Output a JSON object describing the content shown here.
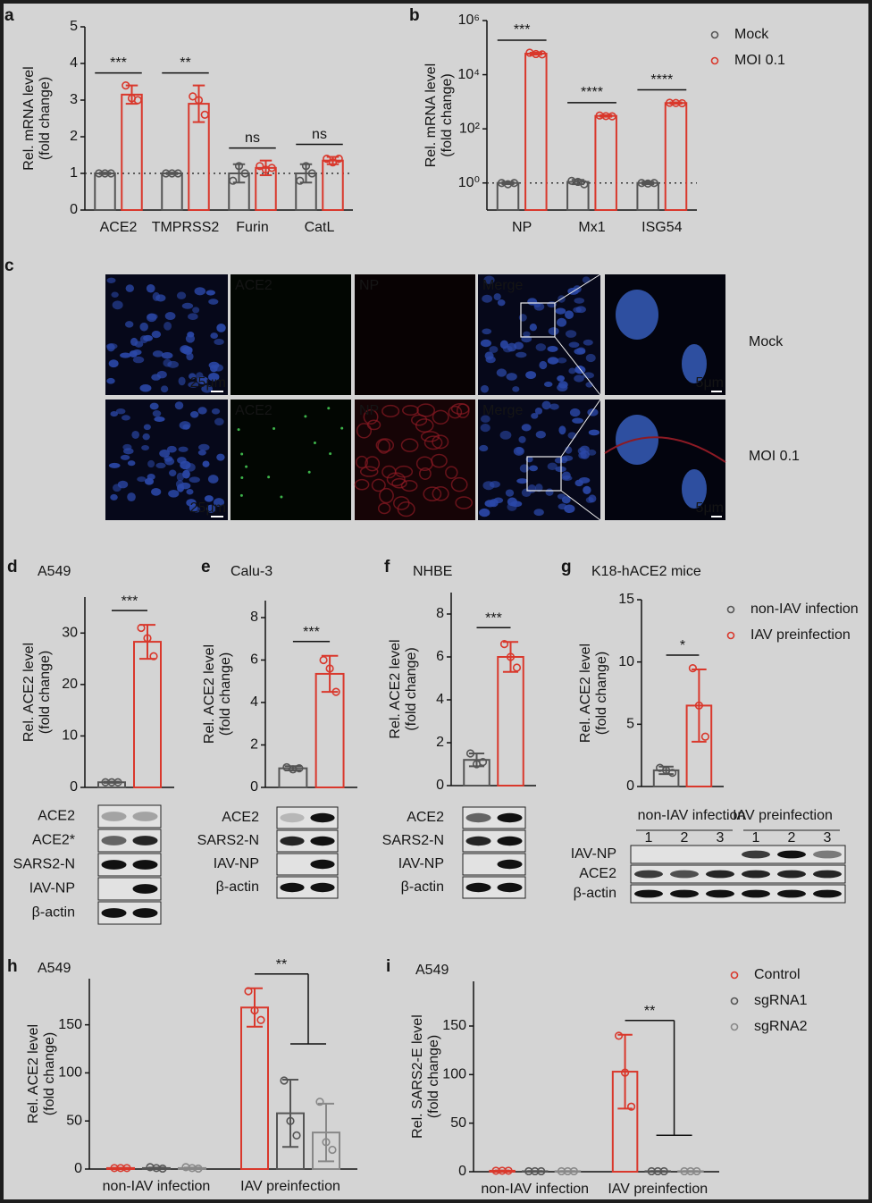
{
  "chart_data": [
    {
      "type": "bar",
      "panel": "a",
      "ylabel": [
        "Rel. mRNA level",
        "(fold change)"
      ],
      "categories": [
        "ACE2",
        "TMPRSS2",
        "Furin",
        "CatL"
      ],
      "series": [
        {
          "name": "Mock",
          "color": "#555555",
          "values": [
            1,
            1,
            1,
            1
          ],
          "errors": [
            0.02,
            0.02,
            0.25,
            0.25
          ],
          "points": [
            [
              1,
              1,
              1
            ],
            [
              1,
              1,
              1
            ],
            [
              0.8,
              1.2,
              1
            ],
            [
              0.8,
              1.2,
              1
            ]
          ]
        },
        {
          "name": "MOI 0.1",
          "color": "#d9382c",
          "values": [
            3.15,
            2.9,
            1.15,
            1.35
          ],
          "errors": [
            0.25,
            0.5,
            0.2,
            0.1
          ],
          "points": [
            [
              3.4,
              3.05,
              3
            ],
            [
              3.1,
              3,
              2.6
            ],
            [
              1.2,
              1.1,
              1.15
            ],
            [
              1.4,
              1.3,
              1.4
            ]
          ]
        }
      ],
      "ylim": [
        0,
        5
      ],
      "yticks": [
        0,
        1,
        2,
        3,
        4,
        5
      ],
      "refline": 1,
      "significance": [
        "***",
        "**",
        "ns",
        "ns"
      ]
    },
    {
      "type": "bar",
      "panel": "b",
      "ylabel": [
        "Rel. mRNA level",
        "(fold change)"
      ],
      "categories": [
        "NP",
        "Mx1",
        "ISG54"
      ],
      "series": [
        {
          "name": "Mock",
          "color": "#555555",
          "values": [
            1,
            1.1,
            1
          ],
          "errors": [
            0.1,
            0.2,
            0.1
          ],
          "points": [
            [
              1,
              0.9,
              1
            ],
            [
              1.2,
              1.1,
              0.9
            ],
            [
              1,
              0.95,
              1
            ]
          ]
        },
        {
          "name": "MOI 0.1",
          "color": "#d9382c",
          "values": [
            60000,
            300,
            900
          ],
          "errors": [
            5000,
            20,
            50
          ],
          "points": [
            [
              65000,
              58000,
              56000
            ],
            [
              310,
              295,
              290
            ],
            [
              920,
              900,
              880
            ]
          ]
        }
      ],
      "ylim": [
        0.1,
        1000000
      ],
      "log": true,
      "yticks": [
        {
          "value": 1,
          "label": "10⁰"
        },
        {
          "value": 100,
          "label": "10²"
        },
        {
          "value": 10000,
          "label": "10⁴"
        },
        {
          "value": 1000000,
          "label": "10⁶"
        }
      ],
      "refline": 1,
      "significance": [
        "***",
        "****",
        "****"
      ],
      "legend": "top-right"
    },
    {
      "type": "bar",
      "panel": "d",
      "title": "A549",
      "ylabel": [
        "Rel. ACE2 level",
        "(fold change)"
      ],
      "categories": [
        null
      ],
      "series": [
        {
          "color": "#555555",
          "values": [
            1
          ],
          "errors": [
            0.1
          ],
          "points": [
            [
              1,
              1,
              1
            ]
          ]
        },
        {
          "color": "#d9382c",
          "values": [
            28.3
          ],
          "errors": [
            3.3
          ],
          "points": [
            [
              31,
              29,
              25.5
            ]
          ]
        }
      ],
      "ylim": [
        0,
        37
      ],
      "yticks": [
        0,
        10,
        20,
        30
      ],
      "significance": "***"
    },
    {
      "type": "bar",
      "panel": "e",
      "title": "Calu-3",
      "ylabel": [
        "Rel. ACE2 level",
        "(fold change)"
      ],
      "categories": [
        null
      ],
      "series": [
        {
          "color": "#555555",
          "values": [
            0.9
          ],
          "errors": [
            0.1
          ],
          "points": [
            [
              0.95,
              0.85,
              0.9
            ]
          ]
        },
        {
          "color": "#d9382c",
          "values": [
            5.35
          ],
          "errors": [
            0.85
          ],
          "points": [
            [
              6,
              5.6,
              4.5
            ]
          ]
        }
      ],
      "ylim": [
        0,
        8.8
      ],
      "yticks": [
        0,
        2,
        4,
        6,
        8
      ],
      "significance": "***"
    },
    {
      "type": "bar",
      "panel": "f",
      "title": "NHBE",
      "ylabel": [
        "Rel. ACE2 level",
        "(fold change)"
      ],
      "categories": [
        null
      ],
      "series": [
        {
          "color": "#555555",
          "values": [
            1.2
          ],
          "errors": [
            0.3
          ],
          "points": [
            [
              1.5,
              1,
              1.1
            ]
          ]
        },
        {
          "color": "#d9382c",
          "values": [
            6
          ],
          "errors": [
            0.7
          ],
          "points": [
            [
              6.6,
              6,
              5.5
            ]
          ]
        }
      ],
      "ylim": [
        0,
        9
      ],
      "yticks": [
        0,
        2,
        4,
        6,
        8
      ],
      "significance": "***"
    },
    {
      "type": "bar",
      "panel": "g",
      "title": "K18-hACE2 mice",
      "ylabel": [
        "Rel. ACE2 level",
        "(fold change)"
      ],
      "categories": [
        null
      ],
      "series": [
        {
          "name": "non-IAV infection",
          "color": "#555555",
          "values": [
            1.3
          ],
          "errors": [
            0.3
          ],
          "points": [
            [
              1.5,
              1.3,
              1.1
            ]
          ]
        },
        {
          "name": "IAV preinfection",
          "color": "#d9382c",
          "values": [
            6.5
          ],
          "errors": [
            2.9
          ],
          "points": [
            [
              9.5,
              6.5,
              4
            ]
          ]
        }
      ],
      "ylim": [
        0,
        15
      ],
      "yticks": [
        0,
        5,
        10,
        15
      ],
      "significance": "*",
      "legend": "top-right"
    },
    {
      "type": "bar",
      "panel": "h",
      "title": "A549",
      "ylabel": [
        "Rel. ACE2 level",
        "(fold change)"
      ],
      "categories": [
        "non-IAV infection",
        "IAV preinfection"
      ],
      "series": [
        {
          "name": "Control",
          "color": "#d9382c",
          "values": [
            1,
            168
          ],
          "errors": [
            0.3,
            20
          ],
          "points": [
            [
              1,
              1,
              1
            ],
            [
              185,
              165,
              155
            ]
          ]
        },
        {
          "name": "sgRNA1",
          "color": "#555555",
          "values": [
            1,
            58
          ],
          "errors": [
            0.5,
            35
          ],
          "points": [
            [
              2,
              1,
              0.5
            ],
            [
              92,
              50,
              35
            ]
          ]
        },
        {
          "name": "sgRNA2",
          "color": "#888888",
          "values": [
            1,
            38
          ],
          "errors": [
            0.5,
            30
          ],
          "points": [
            [
              2,
              1,
              0.5
            ],
            [
              70,
              28,
              20
            ]
          ]
        }
      ],
      "ylim": [
        0,
        198
      ],
      "yticks": [
        0,
        50,
        100,
        150
      ],
      "significance": "**"
    },
    {
      "type": "bar",
      "panel": "i",
      "title": "A549",
      "ylabel": [
        "Rel. SARS2-E level",
        "(fold change)"
      ],
      "categories": [
        "non-IAV infection",
        "IAV preinfection"
      ],
      "series": [
        {
          "name": "Control",
          "color": "#d9382c",
          "values": [
            1,
            103
          ],
          "errors": [
            0.3,
            38
          ],
          "points": [
            [
              1,
              1,
              1
            ],
            [
              140,
              102,
              67
            ]
          ]
        },
        {
          "name": "sgRNA1",
          "color": "#555555",
          "values": [
            0.5,
            0.5
          ],
          "errors": [
            0.2,
            0.2
          ],
          "points": [
            [
              0.5,
              0.5,
              0.5
            ],
            [
              0.5,
              0.5,
              0.5
            ]
          ]
        },
        {
          "name": "sgRNA2",
          "color": "#888888",
          "values": [
            0.5,
            0.5
          ],
          "errors": [
            0.2,
            0.2
          ],
          "points": [
            [
              0.5,
              0.5,
              0.5
            ],
            [
              0.5,
              0.5,
              0.5
            ]
          ]
        }
      ],
      "ylim": [
        0,
        196
      ],
      "yticks": [
        0,
        50,
        100,
        150
      ],
      "significance": "**",
      "legend": "top-right"
    }
  ],
  "microscopy": {
    "panel": "c",
    "channels": [
      "ACE2",
      "NP",
      "Merge"
    ],
    "scale_bars": [
      "25μm",
      "5μm"
    ],
    "rows": [
      "Mock",
      "MOI 0.1"
    ]
  },
  "blots": [
    {
      "rows": [
        "ACE2",
        "ACE2*",
        "SARS2-N",
        "IAV-NP",
        "β-actin"
      ]
    },
    {
      "rows": [
        "ACE2",
        "SARS2-N",
        "IAV-NP",
        "β-actin"
      ]
    },
    {
      "rows": [
        "ACE2",
        "SARS2-N",
        "IAV-NP",
        "β-actin"
      ]
    },
    {
      "groups": [
        "non-IAV infection",
        "IAV preinfection"
      ],
      "lanes": [
        "1",
        "2",
        "3",
        "1",
        "2",
        "3"
      ],
      "rows": [
        "IAV-NP",
        "ACE2",
        "β-actin"
      ]
    }
  ]
}
